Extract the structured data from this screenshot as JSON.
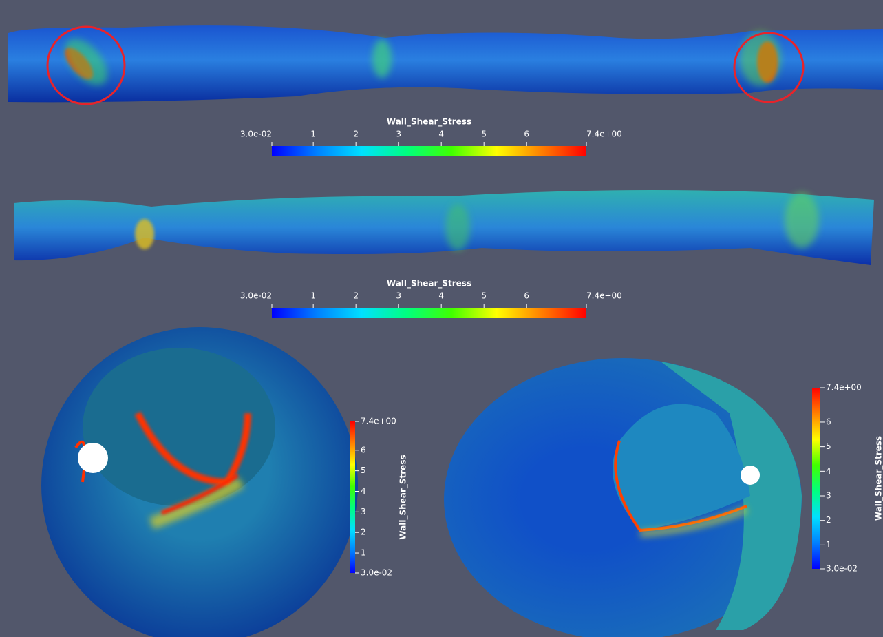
{
  "colormap": [
    "#0000ff",
    "#0080ff",
    "#00e0ff",
    "#00ff80",
    "#40ff00",
    "#ffff00",
    "#ff8000",
    "#ff0000"
  ],
  "colorbars": [
    {
      "title": "Wall_Shear_Stress",
      "orientation": "horizontal",
      "range": [
        0.03,
        7.4
      ],
      "ticks": [
        {
          "value": 0.03,
          "label": "3.0e-02"
        },
        1,
        2,
        3,
        4,
        5,
        6,
        {
          "value": 7.4,
          "label": "7.4e+00"
        }
      ]
    },
    {
      "title": "Wall_Shear_Stress",
      "orientation": "horizontal",
      "range": [
        0.03,
        7.4
      ],
      "ticks": [
        {
          "value": 0.03,
          "label": "3.0e-02"
        },
        1,
        2,
        3,
        4,
        5,
        6,
        {
          "value": 7.4,
          "label": "7.4e+00"
        }
      ]
    },
    {
      "title": "Wall_Shear_Stress",
      "orientation": "vertical",
      "range": [
        0.03,
        7.4
      ],
      "ticks": [
        {
          "value": 0.03,
          "label": "3.0e-02"
        },
        1,
        2,
        3,
        4,
        5,
        6,
        {
          "value": 7.4,
          "label": "7.4e+00"
        }
      ]
    },
    {
      "title": "Wall_Shear_Stress",
      "orientation": "vertical",
      "range": [
        0.03,
        7.4
      ],
      "ticks": [
        {
          "value": 0.03,
          "label": "3.0e-02"
        },
        1,
        2,
        3,
        4,
        5,
        6,
        {
          "value": 7.4,
          "label": "7.4e+00"
        }
      ]
    }
  ]
}
